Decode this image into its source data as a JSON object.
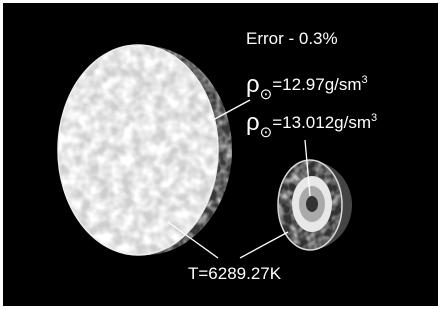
{
  "error": "Error - 0.3%",
  "labels": [
    {
      "symbol": "ρ",
      "subscript": "⊙",
      "text": "=12.97g/sm",
      "superscript": "3"
    },
    {
      "symbol": "ρ",
      "subscript": "⊙",
      "text": "=13.012g/sm",
      "superscript": "3"
    }
  ],
  "temperature": "T=6289.27K"
}
